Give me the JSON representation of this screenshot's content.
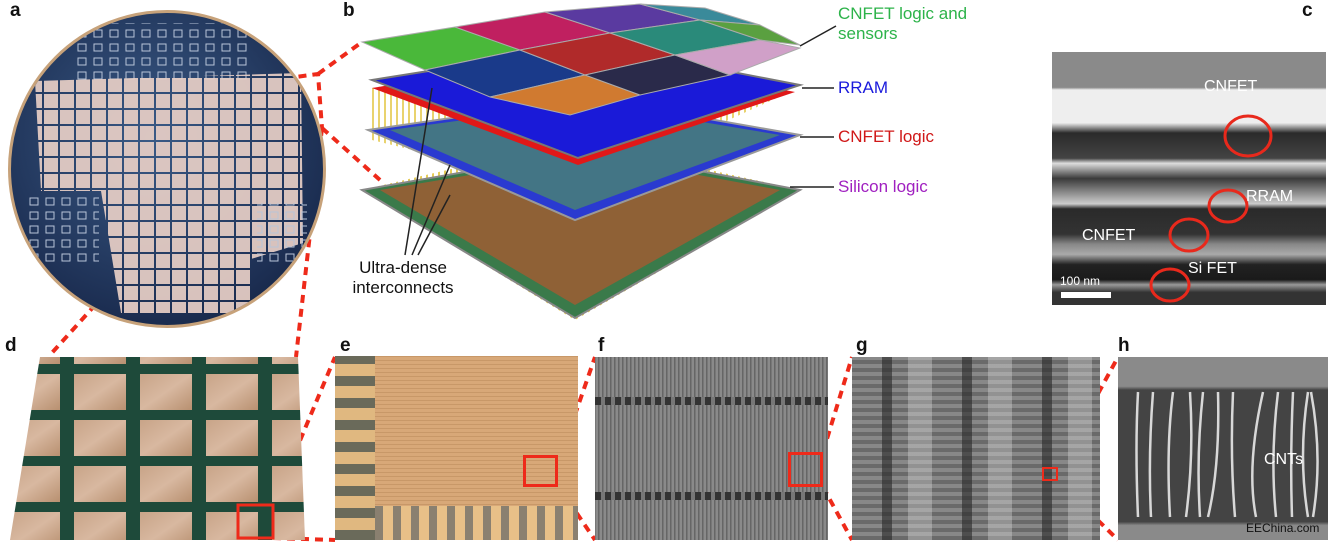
{
  "panel_labels": {
    "a": "a",
    "b": "b",
    "c": "c",
    "d": "d",
    "e": "e",
    "f": "f",
    "g": "g",
    "h": "h"
  },
  "panel_b": {
    "layers": [
      {
        "label": "CNFET logic and sensors",
        "color": "#2db34a"
      },
      {
        "label": "RRAM",
        "color": "#1a1adc"
      },
      {
        "label": "CNFET logic",
        "color": "#d01818"
      },
      {
        "label": "Silicon logic",
        "color": "#a020c0"
      }
    ],
    "interconnect_label": "Ultra-dense interconnects"
  },
  "panel_c": {
    "annotations": [
      "CNFET",
      "RRAM",
      "CNFET",
      "Si FET"
    ],
    "scale_bar": "100 nm",
    "circle_color": "#e8291c"
  },
  "panel_h": {
    "annotation": "CNTs",
    "watermark": "EEChina.com"
  },
  "colors": {
    "highlight": "#ee2a1a"
  }
}
